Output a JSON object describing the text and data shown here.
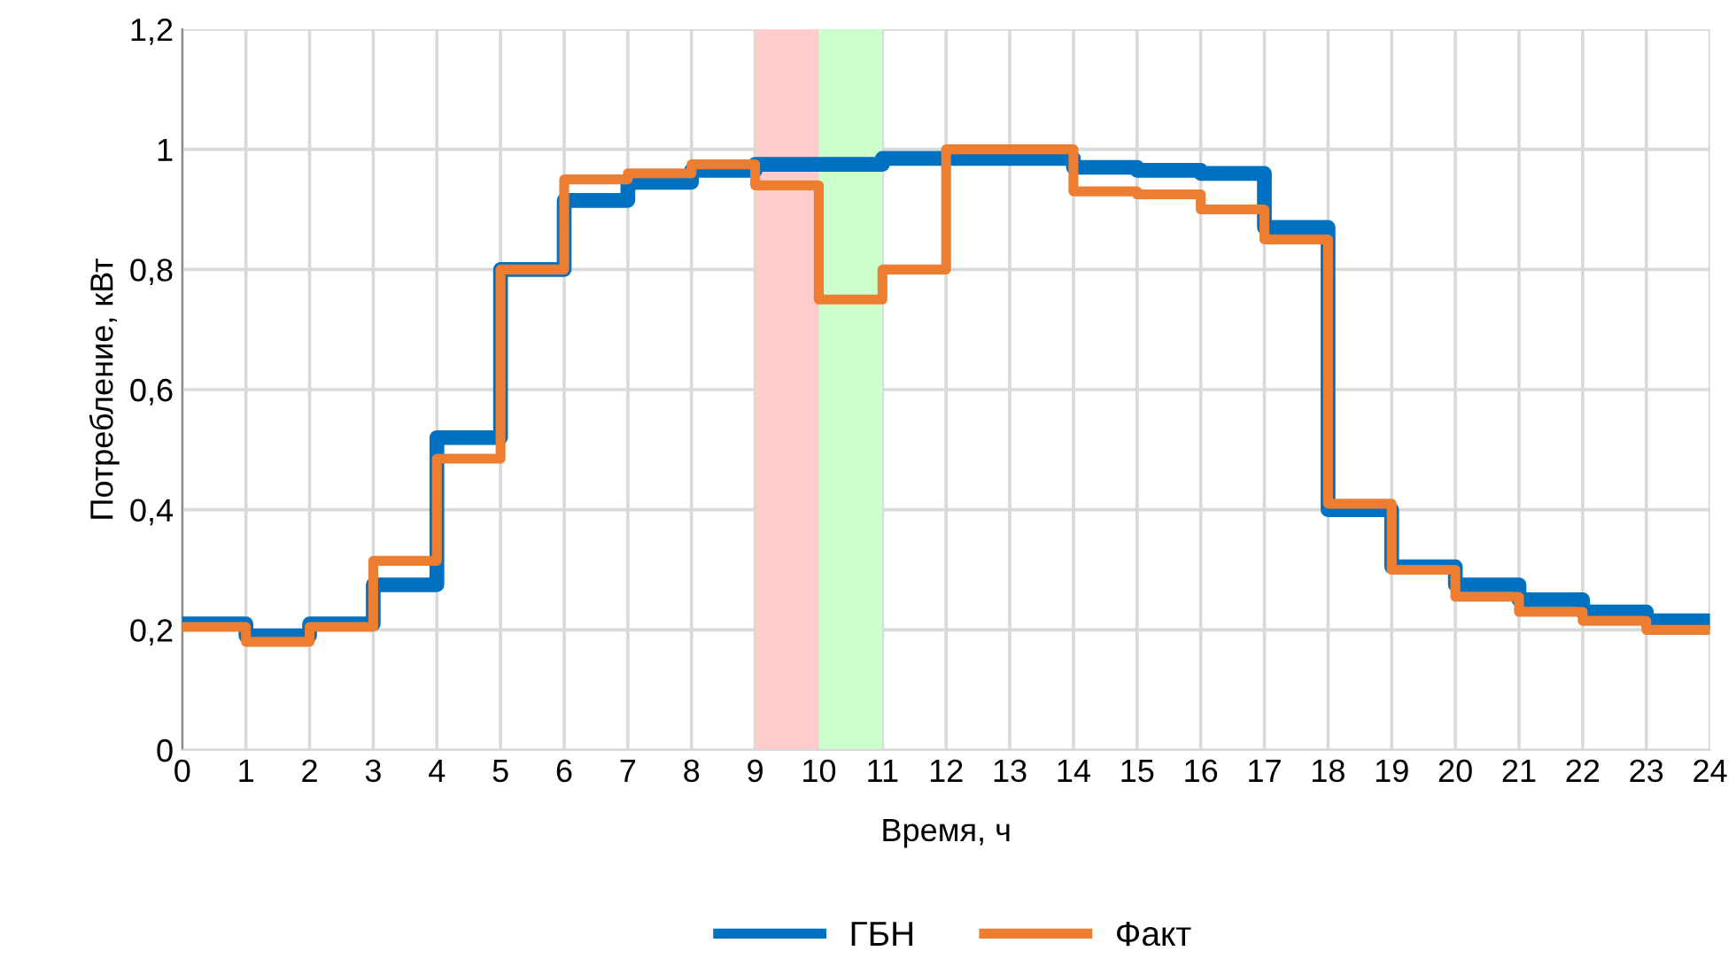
{
  "chart_data": {
    "type": "step",
    "xlabel": "Время, ч",
    "ylabel": "Потребление, кВт",
    "x": [
      0,
      1,
      2,
      3,
      4,
      5,
      6,
      7,
      8,
      9,
      10,
      11,
      12,
      13,
      14,
      15,
      16,
      17,
      18,
      19,
      20,
      21,
      22,
      23,
      24
    ],
    "series": [
      {
        "name": "ГБН",
        "color": "#0070c0",
        "values": [
          0.21,
          0.19,
          0.21,
          0.275,
          0.52,
          0.8,
          0.915,
          0.945,
          0.965,
          0.975,
          0.975,
          0.985,
          0.985,
          0.985,
          0.97,
          0.965,
          0.96,
          0.87,
          0.4,
          0.305,
          0.275,
          0.25,
          0.23,
          0.215,
          0.215
        ]
      },
      {
        "name": "Факт",
        "color": "#ed7d31",
        "values": [
          0.205,
          0.18,
          0.205,
          0.315,
          0.485,
          0.8,
          0.95,
          0.96,
          0.975,
          0.94,
          0.75,
          0.8,
          1.0,
          1.0,
          0.93,
          0.925,
          0.9,
          0.85,
          0.41,
          0.3,
          0.255,
          0.23,
          0.215,
          0.2,
          0.2
        ]
      }
    ],
    "bands": [
      {
        "axis": "x",
        "from": 9,
        "to": 10,
        "color": "#ffcccc"
      },
      {
        "axis": "x",
        "from": 10,
        "to": 11,
        "color": "#ccffcc"
      }
    ],
    "xlim": [
      0,
      24
    ],
    "xticks": [
      0,
      1,
      2,
      3,
      4,
      5,
      6,
      7,
      8,
      9,
      10,
      11,
      12,
      13,
      14,
      15,
      16,
      17,
      18,
      19,
      20,
      21,
      22,
      23,
      24
    ],
    "ylim": [
      0,
      1.2
    ],
    "yticks": [
      0,
      {
        "value": 0.2,
        "label": "0,2"
      },
      {
        "value": 0.4,
        "label": "0,4"
      },
      {
        "value": 0.6,
        "label": "0,6"
      },
      {
        "value": 0.8,
        "label": "0,8"
      },
      1,
      {
        "value": 1.2,
        "label": "1,2"
      }
    ],
    "grid": true,
    "legend": "bottom",
    "line_style": "solid"
  }
}
